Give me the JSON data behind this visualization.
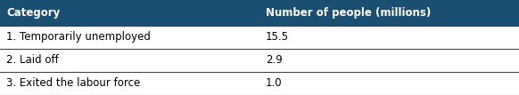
{
  "header": [
    "Category",
    "Number of people (millions)"
  ],
  "rows": [
    [
      "1. Temporarily unemployed",
      "15.5"
    ],
    [
      "2. Laid off",
      "2.9"
    ],
    [
      "3. Exited the labour force",
      "1.0"
    ]
  ],
  "header_bg": "#1b4f72",
  "header_text_color": "#ffffff",
  "row_bg": "#ffffff",
  "row_text_color": "#000000",
  "divider_color": "#1b4f72",
  "col_split": 0.5,
  "header_fontsize": 8.5,
  "row_fontsize": 8.5
}
